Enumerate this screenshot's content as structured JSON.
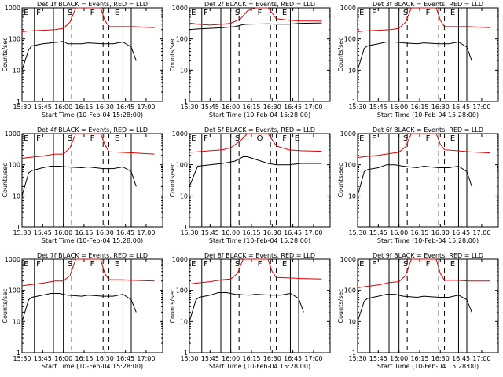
{
  "chart_data": [
    {
      "type": "line",
      "title": "Det 1f BLACK = Events, RED = LLD",
      "xlabel": "Start Time (10-Feb-04 15:28:00)",
      "ylabel": "Counts/sec",
      "xticks": [
        "15:30",
        "15:45",
        "16:00",
        "16:15",
        "16:30",
        "16:45",
        "17:00"
      ],
      "yticks": [
        "1",
        "10",
        "100",
        "1000"
      ],
      "ylim": [
        1,
        1000
      ],
      "ylog": true,
      "markers": [
        "E",
        "F",
        "S",
        "F",
        "E"
      ],
      "series": [
        {
          "name": "BLACK = Events",
          "color": "#000000",
          "x": [
            15.5,
            15.58,
            15.62,
            15.75,
            15.85,
            15.95,
            16.0,
            16.05,
            16.22,
            16.3,
            16.48,
            16.6,
            16.72,
            16.82,
            16.88
          ],
          "values": [
            10,
            45,
            60,
            70,
            75,
            80,
            85,
            70,
            70,
            75,
            70,
            70,
            80,
            55,
            20
          ]
        },
        {
          "name": "RED = LLD",
          "color": "#e00000",
          "x": [
            15.5,
            15.58,
            15.75,
            15.9,
            16.0,
            16.08,
            16.15,
            16.3,
            16.45,
            16.5,
            16.55,
            16.7,
            16.85,
            17.1
          ],
          "values": [
            170,
            180,
            190,
            200,
            220,
            350,
            1000,
            1000,
            1000,
            400,
            250,
            250,
            250,
            230
          ]
        }
      ]
    },
    {
      "type": "line",
      "title": "Det 2f BLACK = Events, RED = LLD",
      "xlabel": "Start Time (10-Feb-04 15:28:00)",
      "ylabel": "Counts/sec",
      "xticks": [
        "15:30",
        "15:45",
        "16:00",
        "16:15",
        "16:30",
        "16:45",
        "17:00"
      ],
      "yticks": [
        "1",
        "10",
        "100",
        "1000"
      ],
      "ylim": [
        1,
        1000
      ],
      "ylog": true,
      "markers": [
        "E",
        "F",
        "S",
        "F",
        "E"
      ],
      "series": [
        {
          "name": "BLACK = Events",
          "color": "#000000",
          "x": [
            15.5,
            15.6,
            15.75,
            15.9,
            16.05,
            16.15,
            16.2,
            16.45,
            16.55,
            16.7,
            16.85,
            17.1
          ],
          "values": [
            200,
            210,
            220,
            230,
            250,
            290,
            300,
            310,
            300,
            300,
            320,
            330
          ]
        },
        {
          "name": "RED = LLD",
          "color": "#e00000",
          "x": [
            15.5,
            15.6,
            15.75,
            15.9,
            16.0,
            16.12,
            16.2,
            16.3,
            16.45,
            16.55,
            16.7,
            16.85,
            17.1
          ],
          "values": [
            330,
            300,
            280,
            300,
            320,
            450,
            800,
            1000,
            1000,
            450,
            400,
            380,
            380
          ]
        }
      ]
    },
    {
      "type": "line",
      "title": "Det 3f BLACK = Events, RED = LLD",
      "xlabel": "Start Time (10-Feb-04 15:28:00)",
      "ylabel": "Counts/sec",
      "xticks": [
        "15:30",
        "15:45",
        "16:00",
        "16:15",
        "16:30",
        "16:45",
        "17:00"
      ],
      "yticks": [
        "1",
        "10",
        "100",
        "1000"
      ],
      "ylim": [
        1,
        1000
      ],
      "ylog": true,
      "markers": [
        "E",
        "F",
        "S",
        "F",
        "E"
      ],
      "series": [
        {
          "name": "BLACK = Events",
          "color": "#000000",
          "x": [
            15.5,
            15.58,
            15.62,
            15.75,
            15.85,
            15.95,
            16.05,
            16.22,
            16.3,
            16.48,
            16.6,
            16.72,
            16.82,
            16.88
          ],
          "values": [
            10,
            50,
            60,
            70,
            80,
            80,
            75,
            70,
            75,
            70,
            70,
            80,
            55,
            20
          ]
        },
        {
          "name": "RED = LLD",
          "color": "#e00000",
          "x": [
            15.5,
            15.58,
            15.75,
            15.9,
            16.0,
            16.08,
            16.15,
            16.3,
            16.45,
            16.5,
            16.55,
            16.7,
            16.85,
            17.1
          ],
          "values": [
            170,
            180,
            190,
            200,
            220,
            350,
            1000,
            1000,
            1000,
            400,
            250,
            250,
            250,
            230
          ]
        }
      ]
    },
    {
      "type": "line",
      "title": "Det 4f BLACK = Events, RED = LLD",
      "xlabel": "Start Time (10-Feb-04 15:28:00)",
      "ylabel": "Counts/sec",
      "xticks": [
        "15:30",
        "15:45",
        "16:00",
        "16:15",
        "16:30",
        "16:45",
        "17:00"
      ],
      "yticks": [
        "1",
        "10",
        "100",
        "1000"
      ],
      "ylim": [
        1,
        1000
      ],
      "ylog": true,
      "markers": [
        "E",
        "F",
        "S",
        "F",
        "E"
      ],
      "series": [
        {
          "name": "BLACK = Events",
          "color": "#000000",
          "x": [
            15.5,
            15.58,
            15.62,
            15.75,
            15.85,
            15.95,
            16.05,
            16.22,
            16.3,
            16.48,
            16.6,
            16.72,
            16.82,
            16.88
          ],
          "values": [
            10,
            55,
            65,
            80,
            90,
            90,
            85,
            80,
            85,
            75,
            75,
            85,
            60,
            20
          ]
        },
        {
          "name": "RED = LLD",
          "color": "#e00000",
          "x": [
            15.5,
            15.58,
            15.75,
            15.9,
            16.0,
            16.08,
            16.15,
            16.3,
            16.45,
            16.5,
            16.55,
            16.7,
            16.85,
            17.1
          ],
          "values": [
            160,
            170,
            190,
            220,
            220,
            350,
            1000,
            1000,
            1000,
            450,
            260,
            250,
            240,
            220
          ]
        }
      ]
    },
    {
      "type": "line",
      "title": "Det 5f BLACK = Events, RED = LLD",
      "xlabel": "Start Time (10-Feb-04 15:28:00)",
      "ylabel": "Counts/sec",
      "xticks": [
        "15:30",
        "15:45",
        "16:00",
        "16:15",
        "16:30",
        "16:45",
        "17:00"
      ],
      "yticks": [
        "1",
        "10",
        "100",
        "1000"
      ],
      "ylim": [
        1,
        1000
      ],
      "ylog": true,
      "markers": [
        "E",
        "F",
        "S",
        "O",
        "F",
        "E"
      ],
      "series": [
        {
          "name": "BLACK = Events",
          "color": "#000000",
          "x": [
            15.5,
            15.6,
            15.75,
            15.9,
            16.05,
            16.15,
            16.2,
            16.45,
            16.55,
            16.7,
            16.85,
            17.1
          ],
          "values": [
            20,
            90,
            100,
            110,
            130,
            180,
            180,
            110,
            100,
            100,
            110,
            110
          ]
        },
        {
          "name": "RED = LLD",
          "color": "#e00000",
          "x": [
            15.5,
            15.6,
            15.75,
            15.9,
            16.0,
            16.12,
            16.2,
            16.3,
            16.45,
            16.55,
            16.7,
            16.85,
            17.1
          ],
          "values": [
            250,
            260,
            280,
            300,
            350,
            600,
            1000,
            1000,
            1000,
            400,
            300,
            280,
            270
          ]
        }
      ]
    },
    {
      "type": "line",
      "title": "Det 6f BLACK = Events, RED = LLD",
      "xlabel": "Start Time (10-Feb-04 15:28:00)",
      "ylabel": "Counts/sec",
      "xticks": [
        "15:30",
        "15:45",
        "16:00",
        "16:15",
        "16:30",
        "16:45",
        "17:00"
      ],
      "yticks": [
        "1",
        "10",
        "100",
        "1000"
      ],
      "ylim": [
        1,
        1000
      ],
      "ylog": true,
      "markers": [
        "E",
        "F",
        "S",
        "F",
        "E"
      ],
      "series": [
        {
          "name": "BLACK = Events",
          "color": "#000000",
          "x": [
            15.5,
            15.58,
            15.62,
            15.75,
            15.85,
            15.95,
            16.05,
            16.22,
            16.3,
            16.48,
            16.6,
            16.72,
            16.82,
            16.88
          ],
          "values": [
            10,
            60,
            70,
            80,
            100,
            100,
            90,
            80,
            90,
            80,
            80,
            90,
            60,
            20
          ]
        },
        {
          "name": "RED = LLD",
          "color": "#e00000",
          "x": [
            15.5,
            15.58,
            15.75,
            15.9,
            16.0,
            16.08,
            16.15,
            16.3,
            16.45,
            16.5,
            16.55,
            16.7,
            16.85,
            17.1
          ],
          "values": [
            170,
            180,
            200,
            230,
            250,
            380,
            1000,
            1000,
            1000,
            450,
            300,
            280,
            260,
            240
          ]
        }
      ]
    },
    {
      "type": "line",
      "title": "Det 7f BLACK = Events, RED = LLD",
      "xlabel": "Start Time (10-Feb-04 15:28:00)",
      "ylabel": "Counts/sec",
      "xticks": [
        "15:30",
        "15:45",
        "16:00",
        "16:15",
        "16:30",
        "16:45",
        "17:00"
      ],
      "yticks": [
        "1",
        "10",
        "100",
        "1000"
      ],
      "ylim": [
        1,
        1000
      ],
      "ylog": true,
      "markers": [
        "E",
        "F",
        "S",
        "F",
        "E"
      ],
      "series": [
        {
          "name": "BLACK = Events",
          "color": "#000000",
          "x": [
            15.5,
            15.58,
            15.62,
            15.75,
            15.85,
            15.95,
            16.05,
            16.22,
            16.3,
            16.48,
            16.6,
            16.72,
            16.82,
            16.88
          ],
          "values": [
            10,
            50,
            60,
            70,
            80,
            80,
            70,
            65,
            70,
            65,
            65,
            75,
            50,
            20
          ]
        },
        {
          "name": "RED = LLD",
          "color": "#e00000",
          "x": [
            15.5,
            15.58,
            15.75,
            15.9,
            16.0,
            16.08,
            16.15,
            16.3,
            16.45,
            16.5,
            16.55,
            16.7,
            16.85,
            17.1
          ],
          "values": [
            140,
            150,
            170,
            200,
            200,
            300,
            1000,
            1000,
            1000,
            350,
            220,
            220,
            210,
            200
          ]
        }
      ]
    },
    {
      "type": "line",
      "title": "Det 8f BLACK = Events, RED = LLD",
      "xlabel": "Start Time (10-Feb-04 15:28:00)",
      "ylabel": "Counts/sec",
      "xticks": [
        "15:30",
        "15:45",
        "16:00",
        "16:15",
        "16:30",
        "16:45",
        "17:00"
      ],
      "yticks": [
        "1",
        "10",
        "100",
        "1000"
      ],
      "ylim": [
        1,
        1000
      ],
      "ylog": true,
      "markers": [
        "E",
        "F",
        "S",
        "F",
        "E"
      ],
      "series": [
        {
          "name": "BLACK = Events",
          "color": "#000000",
          "x": [
            15.5,
            15.58,
            15.62,
            15.75,
            15.85,
            15.95,
            16.05,
            16.22,
            16.3,
            16.48,
            16.6,
            16.72,
            16.82,
            16.88
          ],
          "values": [
            10,
            50,
            60,
            70,
            85,
            85,
            75,
            70,
            75,
            70,
            70,
            80,
            55,
            20
          ]
        },
        {
          "name": "RED = LLD",
          "color": "#e00000",
          "x": [
            15.5,
            15.58,
            15.75,
            15.9,
            16.0,
            16.08,
            16.15,
            16.3,
            16.45,
            16.5,
            16.55,
            16.7,
            16.85,
            17.1
          ],
          "values": [
            160,
            170,
            190,
            220,
            230,
            350,
            1000,
            1000,
            1000,
            400,
            260,
            250,
            240,
            230
          ]
        }
      ]
    },
    {
      "type": "line",
      "title": "Det 9f BLACK = Events, RED = LLD",
      "xlabel": "Start Time (10-Feb-04 15:28:00)",
      "ylabel": "Counts/sec",
      "xticks": [
        "15:30",
        "15:45",
        "16:00",
        "16:15",
        "16:30",
        "16:45",
        "17:00"
      ],
      "yticks": [
        "1",
        "10",
        "100",
        "1000"
      ],
      "ylim": [
        1,
        1000
      ],
      "ylog": true,
      "markers": [
        "E",
        "F",
        "S",
        "F",
        "E"
      ],
      "series": [
        {
          "name": "BLACK = Events",
          "color": "#000000",
          "x": [
            15.5,
            15.58,
            15.62,
            15.75,
            15.85,
            15.95,
            16.05,
            16.22,
            16.3,
            16.48,
            16.6,
            16.72,
            16.82,
            16.88
          ],
          "values": [
            10,
            45,
            55,
            65,
            75,
            75,
            65,
            60,
            65,
            60,
            60,
            70,
            50,
            20
          ]
        },
        {
          "name": "RED = LLD",
          "color": "#e00000",
          "x": [
            15.5,
            15.58,
            15.75,
            15.9,
            16.0,
            16.08,
            16.15,
            16.3,
            16.45,
            16.5,
            16.55,
            16.7,
            16.85,
            17.1
          ],
          "values": [
            120,
            130,
            150,
            180,
            190,
            300,
            1000,
            1000,
            1000,
            350,
            210,
            210,
            200,
            200
          ]
        }
      ]
    }
  ]
}
